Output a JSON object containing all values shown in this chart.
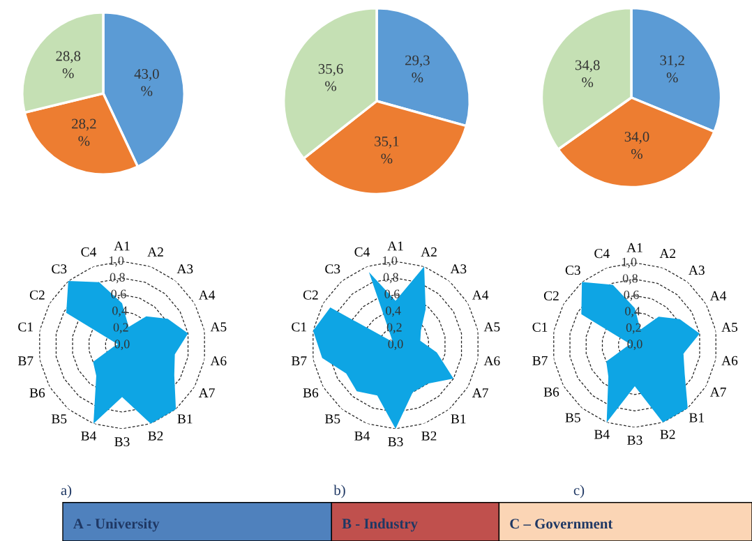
{
  "chart_data": [
    {
      "type": "pie",
      "categories": [
        null,
        null,
        null
      ],
      "values": [
        43.0,
        28.2,
        28.8
      ],
      "value_labels": [
        "43,0\n%",
        "28,2\n%",
        "28,8\n%"
      ],
      "colors": [
        "#5b9bd5",
        "#ed7d31",
        "#c5e0b4"
      ]
    },
    {
      "type": "pie",
      "categories": [
        null,
        null,
        null
      ],
      "values": [
        29.3,
        35.1,
        35.6
      ],
      "value_labels": [
        "29,3\n%",
        "35,1\n%",
        "35,6\n%"
      ],
      "colors": [
        "#5b9bd5",
        "#ed7d31",
        "#c5e0b4"
      ]
    },
    {
      "type": "pie",
      "categories": [
        null,
        null,
        null
      ],
      "values": [
        31.2,
        34.0,
        34.8
      ],
      "value_labels": [
        "31,2\n%",
        "34,0\n%",
        "34,8\n%"
      ],
      "colors": [
        "#5b9bd5",
        "#ed7d31",
        "#c5e0b4"
      ]
    },
    {
      "type": "radar",
      "categories": [
        "A1",
        "A2",
        "A3",
        "A4",
        "A5",
        "A6",
        "A7",
        "B1",
        "B2",
        "B3",
        "B4",
        "B5",
        "B6",
        "B7",
        "C1",
        "C2",
        "C3",
        "C4"
      ],
      "ylim": [
        0,
        1
      ],
      "yticks": [
        {
          "value": 0,
          "label": "0,0"
        },
        {
          "value": 0.2,
          "label": "0,2"
        },
        {
          "value": 0.4,
          "label": "0,4"
        },
        {
          "value": 0.6,
          "label": "0,6"
        },
        {
          "value": 0.8,
          "label": "0,8"
        },
        {
          "value": 1.0,
          "label": "1,0"
        }
      ],
      "grid": true,
      "line_style": "dashed",
      "annotations": [
        "a)"
      ],
      "series": [
        {
          "color": "#0ea5e4",
          "values": [
            0.5,
            0.23,
            0.45,
            0.63,
            0.8,
            0.64,
            0.72,
            1.0,
            1.0,
            0.62,
            1.0,
            0.48,
            0.4,
            0.1,
            0.05,
            0.77,
            1.0,
            0.8
          ]
        }
      ]
    },
    {
      "type": "radar",
      "categories": [
        "A1",
        "A2",
        "A3",
        "A4",
        "A5",
        "A6",
        "A7",
        "B1",
        "B2",
        "B3",
        "B4",
        "B5",
        "B6",
        "B7",
        "C1",
        "C2",
        "C3",
        "C4"
      ],
      "ylim": [
        0,
        1
      ],
      "yticks": [
        {
          "value": 0,
          "label": "0,0"
        },
        {
          "value": 0.2,
          "label": "0,2"
        },
        {
          "value": 0.4,
          "label": "0,4"
        },
        {
          "value": 0.6,
          "label": "0,6"
        },
        {
          "value": 0.8,
          "label": "0,8"
        },
        {
          "value": 1.0,
          "label": "1,0"
        }
      ],
      "grid": true,
      "line_style": "dashed",
      "annotations": [
        "b)"
      ],
      "series": [
        {
          "color": "#0ea5e4",
          "values": [
            0.53,
            1.0,
            0.56,
            0.35,
            0.3,
            0.5,
            0.8,
            0.6,
            0.6,
            1.0,
            0.64,
            0.72,
            0.68,
            0.89,
            1.0,
            0.9,
            0.05,
            0.93
          ]
        }
      ]
    },
    {
      "type": "radar",
      "categories": [
        "A1",
        "A2",
        "A3",
        "A4",
        "A5",
        "A6",
        "A7",
        "B1",
        "B2",
        "B3",
        "B4",
        "B5",
        "B6",
        "B7",
        "C1",
        "C2",
        "C3",
        "C4"
      ],
      "ylim": [
        0,
        1
      ],
      "yticks": [
        {
          "value": 0,
          "label": "0,0"
        },
        {
          "value": 0.2,
          "label": "0,2"
        },
        {
          "value": 0.4,
          "label": "0,4"
        },
        {
          "value": 0.6,
          "label": "0,6"
        },
        {
          "value": 0.8,
          "label": "0,8"
        },
        {
          "value": 1.0,
          "label": "1,0"
        }
      ],
      "grid": true,
      "line_style": "dashed",
      "annotations": [
        "c)"
      ],
      "series": [
        {
          "color": "#0ea5e4",
          "values": [
            0.45,
            0.2,
            0.45,
            0.63,
            0.8,
            0.6,
            0.7,
            1.0,
            1.0,
            0.5,
            1.0,
            0.5,
            0.4,
            0.1,
            0.05,
            0.75,
            1.0,
            0.78
          ]
        }
      ]
    },
    {
      "type": "other",
      "categories": [
        "A - University",
        "B - Industry",
        "C – Government"
      ],
      "colors": [
        "#4f81bd",
        "#c0504d",
        "#fbd5b5"
      ]
    }
  ]
}
